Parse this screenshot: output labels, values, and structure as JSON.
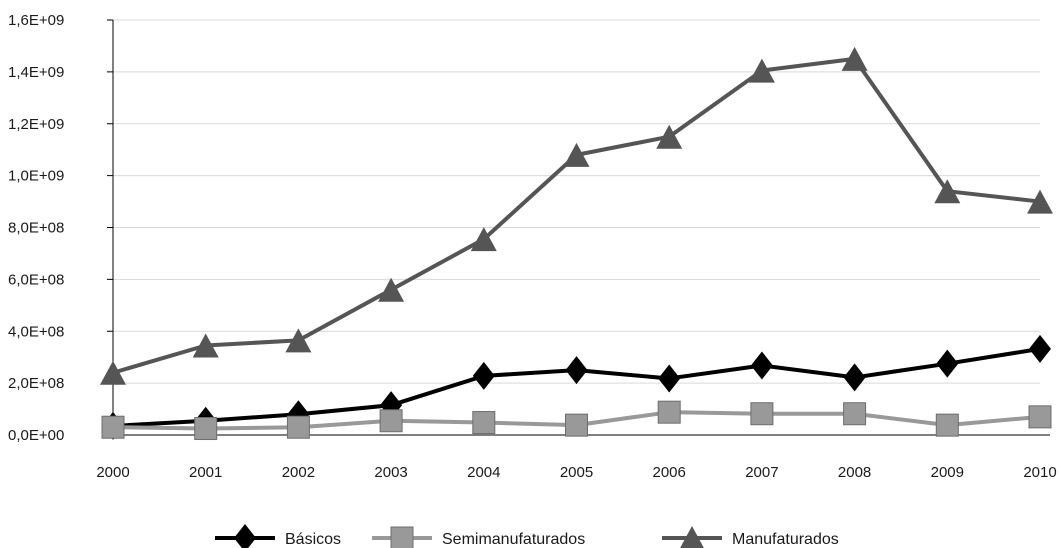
{
  "chart_data": {
    "type": "line",
    "title": "",
    "xlabel": "",
    "ylabel": "",
    "x": [
      "2000",
      "2001",
      "2002",
      "2003",
      "2004",
      "2005",
      "2006",
      "2007",
      "2008",
      "2009",
      "2010"
    ],
    "ylim": [
      0,
      1600000000
    ],
    "y_ticks": [
      0,
      200000000,
      400000000,
      600000000,
      800000000,
      1000000000,
      1200000000,
      1400000000,
      1600000000
    ],
    "y_tick_labels": [
      "0,0E+00",
      "2,0E+08",
      "4,0E+08",
      "6,0E+08",
      "8,0E+08",
      "1,0E+09",
      "1,2E+09",
      "1,4E+09",
      "1,6E+09"
    ],
    "grid": true,
    "legend_position": "bottom",
    "series": [
      {
        "name": "Básicos",
        "color": "#000000",
        "marker": "diamond",
        "values": [
          35000000,
          55000000,
          80000000,
          115000000,
          228000000,
          250000000,
          218000000,
          268000000,
          222000000,
          275000000,
          332000000
        ]
      },
      {
        "name": "Semimanufaturados",
        "color": "#999999",
        "marker": "square",
        "values": [
          30000000,
          25000000,
          30000000,
          55000000,
          48000000,
          38000000,
          88000000,
          82000000,
          82000000,
          38000000,
          70000000
        ]
      },
      {
        "name": "Manufaturados",
        "color": "#555555",
        "marker": "triangle",
        "values": [
          240000000,
          345000000,
          365000000,
          560000000,
          755000000,
          1080000000,
          1150000000,
          1405000000,
          1450000000,
          940000000,
          900000000
        ]
      }
    ]
  }
}
